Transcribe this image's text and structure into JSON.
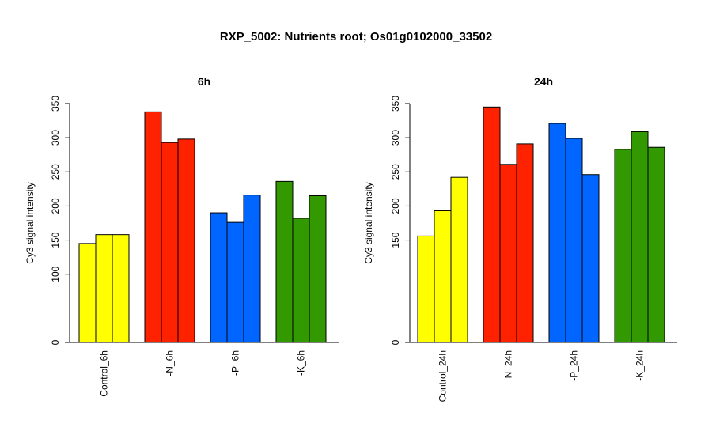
{
  "title": "RXP_5002: Nutrients root; Os01g0102000_33502",
  "colors": {
    "control": "#ffff00",
    "N": "#ff2200",
    "P": "#0066ff",
    "K": "#339900"
  },
  "chart_data": [
    {
      "type": "bar",
      "title": "6h",
      "ylabel": "Cy3 signal intensity",
      "ylim": [
        0,
        350
      ],
      "yticks": [
        0,
        100,
        150,
        200,
        250,
        300,
        350
      ],
      "categories": [
        "Control_6h",
        "-N_6h",
        "-P_6h",
        "-K_6h"
      ],
      "category_colors": [
        "#ffff00",
        "#ff2200",
        "#0066ff",
        "#339900"
      ],
      "series": [
        {
          "values": [
            145,
            338,
            190,
            236
          ]
        },
        {
          "values": [
            158,
            293,
            176,
            182
          ]
        },
        {
          "values": [
            158,
            298,
            216,
            215
          ]
        }
      ]
    },
    {
      "type": "bar",
      "title": "24h",
      "ylabel": "Cy3 signal intensity",
      "ylim": [
        0,
        350
      ],
      "yticks": [
        0,
        150,
        200,
        250,
        300,
        350
      ],
      "categories": [
        "Control_24h",
        "-N_24h",
        "-P_24h",
        "-K_24h"
      ],
      "category_colors": [
        "#ffff00",
        "#ff2200",
        "#0066ff",
        "#339900"
      ],
      "series": [
        {
          "values": [
            156,
            345,
            321,
            283
          ]
        },
        {
          "values": [
            193,
            261,
            299,
            309
          ]
        },
        {
          "values": [
            242,
            291,
            246,
            286
          ]
        }
      ]
    }
  ]
}
